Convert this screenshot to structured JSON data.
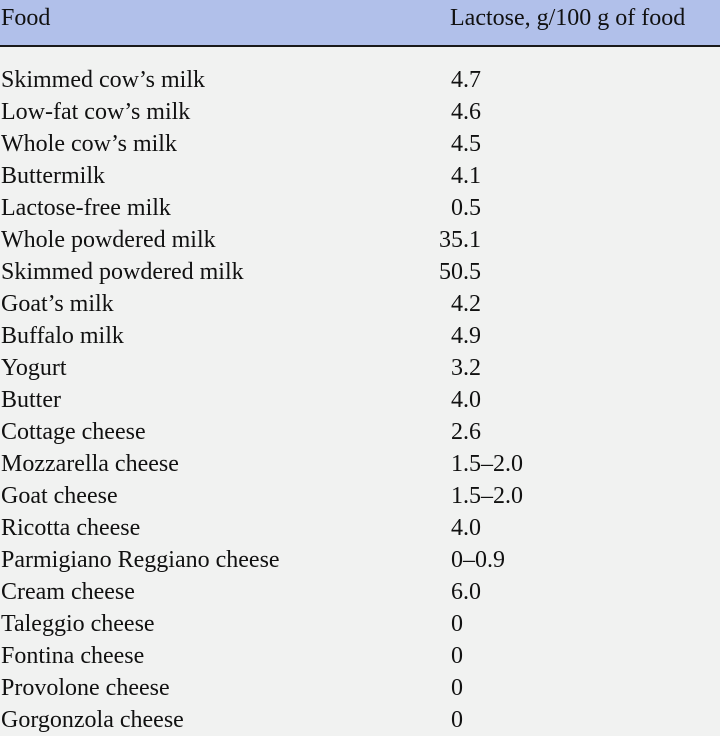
{
  "table": {
    "header": {
      "food": "Food",
      "lactose": "Lactose, g/100 g of food"
    },
    "rows": [
      {
        "food": "Skimmed cow’s milk",
        "int": "4",
        "rest": ".7"
      },
      {
        "food": "Low-fat cow’s milk",
        "int": "4",
        "rest": ".6"
      },
      {
        "food": "Whole cow’s milk",
        "int": "4",
        "rest": ".5"
      },
      {
        "food": "Buttermilk",
        "int": "4",
        "rest": ".1"
      },
      {
        "food": "Lactose-free milk",
        "int": "0",
        "rest": ".5"
      },
      {
        "food": "Whole powdered milk",
        "int": "35",
        "rest": ".1"
      },
      {
        "food": "Skimmed powdered milk",
        "int": "50",
        "rest": ".5"
      },
      {
        "food": "Goat’s milk",
        "int": "4",
        "rest": ".2"
      },
      {
        "food": "Buffalo milk",
        "int": "4",
        "rest": ".9"
      },
      {
        "food": "Yogurt",
        "int": "3",
        "rest": ".2"
      },
      {
        "food": "Butter",
        "int": "4",
        "rest": ".0"
      },
      {
        "food": "Cottage cheese",
        "int": "2",
        "rest": ".6"
      },
      {
        "food": "Mozzarella cheese",
        "int": "1",
        "rest": ".5–2.0"
      },
      {
        "food": "Goat cheese",
        "int": "1",
        "rest": ".5–2.0"
      },
      {
        "food": "Ricotta cheese",
        "int": "4",
        "rest": ".0"
      },
      {
        "food": "Parmigiano Reggiano cheese",
        "int": "0",
        "rest": "–0.9"
      },
      {
        "food": "Cream cheese",
        "int": "6",
        "rest": ".0"
      },
      {
        "food": "Taleggio cheese",
        "int": "0",
        "rest": ""
      },
      {
        "food": "Fontina cheese",
        "int": "0",
        "rest": ""
      },
      {
        "food": "Provolone cheese",
        "int": "0",
        "rest": ""
      },
      {
        "food": "Gorgonzola cheese",
        "int": "0",
        "rest": ""
      }
    ],
    "values_display": [
      "4.7",
      "4.6",
      "4.5",
      "4.1",
      "0.5",
      "35.1",
      "50.5",
      "4.2",
      "4.9",
      "3.2",
      "4.0",
      "2.6",
      "1.5–2.0",
      "1.5–2.0",
      "4.0",
      "0–0.9",
      "6.0",
      "0",
      "0",
      "0",
      "0"
    ]
  },
  "colors": {
    "header_background": "#b1c0ea",
    "body_background": "#f1f2f1",
    "rule": "#1a1a1a",
    "text": "#111111"
  }
}
